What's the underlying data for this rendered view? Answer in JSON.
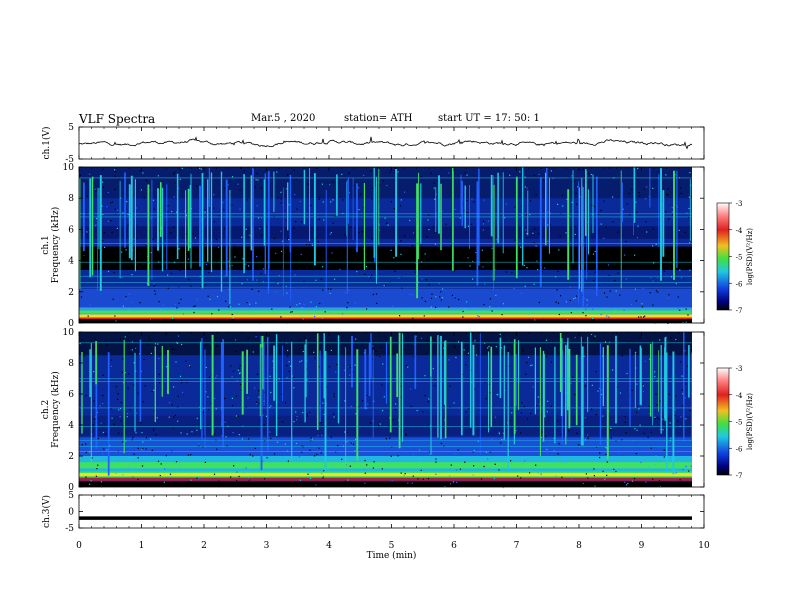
{
  "header": {
    "title": "VLF  Spectra",
    "date": "Mar.5  , 2020",
    "station": "station= ATH",
    "start_ut": "start  UT  =    17: 50: 1"
  },
  "chart_data": [
    {
      "type": "line",
      "panel": "ch1-waveform",
      "ylabel": "ch.1(V)",
      "ylim": [
        -5,
        5
      ],
      "yticks": [
        "5",
        "-5"
      ],
      "description_of_trace": "noisy waveform around 0 V, amplitude roughly ±1 V",
      "color": "#000000"
    },
    {
      "type": "heatmap",
      "panel": "ch1-spectrogram",
      "ylabel": "ch.1\nFrequency  (kHz)",
      "ylabel_lines": [
        "ch.1",
        "Frequency  (kHz)"
      ],
      "ylim": [
        0,
        10
      ],
      "yticks": [
        "0",
        "2",
        "4",
        "6",
        "8",
        "10"
      ],
      "xlim": [
        0,
        10
      ],
      "colorbar": {
        "label": "log(PSD)(V²/Hz)",
        "range": [
          -7,
          -3
        ],
        "ticks": [
          "-3",
          "-4",
          "-5",
          "-6",
          "-7"
        ]
      }
    },
    {
      "type": "heatmap",
      "panel": "ch2-spectrogram",
      "ylabel_lines": [
        "ch.2",
        "Frequency  (kHz)"
      ],
      "ylim": [
        0,
        10
      ],
      "yticks": [
        "0",
        "2",
        "4",
        "6",
        "8",
        "10"
      ],
      "xlim": [
        0,
        10
      ],
      "colorbar": {
        "label": "log(PSD)(V²/Hz)",
        "range": [
          -7,
          -3
        ],
        "ticks": [
          "-3",
          "-4",
          "-5",
          "-6",
          "-7"
        ]
      }
    },
    {
      "type": "line",
      "panel": "ch3-waveform",
      "ylabel": "ch.3(V)",
      "ylim": [
        -5,
        5
      ],
      "yticks": [
        "5",
        "0",
        "-5"
      ],
      "constant_value": -2,
      "color": "#000000"
    }
  ],
  "xaxis": {
    "label": "Time  (min)",
    "ticks": [
      "0",
      "1",
      "2",
      "3",
      "4",
      "5",
      "6",
      "7",
      "8",
      "9",
      "10"
    ],
    "xlim": [
      0,
      10
    ]
  },
  "colors": {
    "background_dark": "#000000",
    "spectro_blue": "#0a2a9a",
    "spectro_cyan": "#20c8e0",
    "spectro_green": "#40e060",
    "spectro_yellow": "#f0e020",
    "spectro_red": "#e02020"
  }
}
